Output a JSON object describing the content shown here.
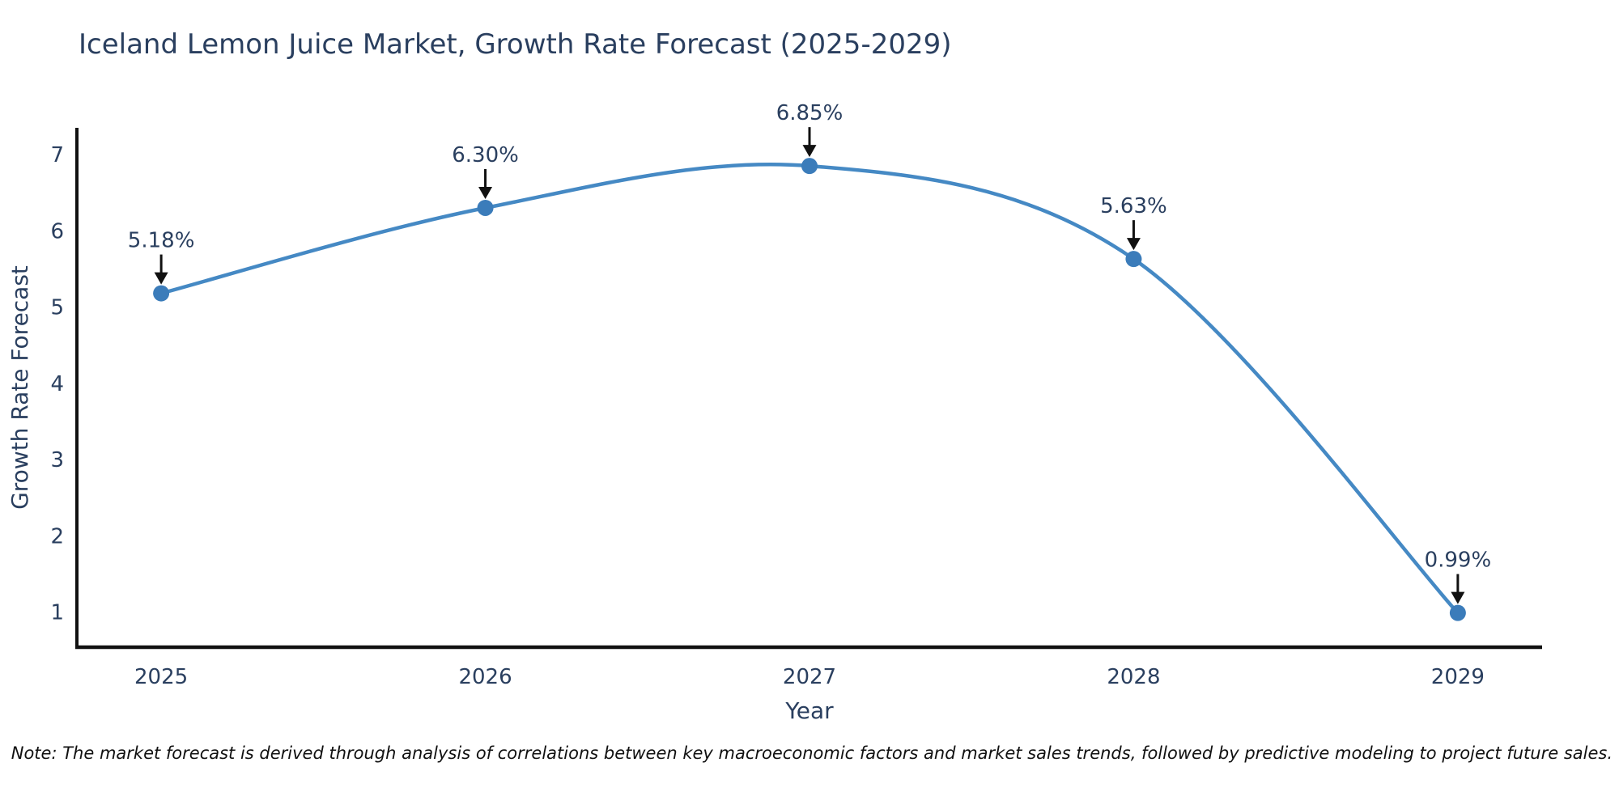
{
  "chart_data": {
    "type": "line",
    "title": "Iceland Lemon Juice Market, Growth Rate Forecast (2025-2029)",
    "xlabel": "Year",
    "ylabel": "Growth Rate Forecast",
    "x": [
      2025,
      2026,
      2027,
      2028,
      2029
    ],
    "y": [
      5.18,
      6.3,
      6.85,
      5.63,
      0.99
    ],
    "point_labels": [
      "5.18%",
      "6.30%",
      "6.85%",
      "5.63%",
      "0.99%"
    ],
    "xticks": [
      2025,
      2026,
      2027,
      2028,
      2029
    ],
    "yticks": [
      1,
      2,
      3,
      4,
      5,
      6,
      7
    ],
    "xlim": [
      2024.74,
      2029.26
    ],
    "ylim": [
      0.54,
      7.35
    ],
    "grid": false,
    "legend": false,
    "line_shape": "spline",
    "colors": {
      "line": "#4589c4",
      "marker": "#3b7cba",
      "text": "#2a3f5f",
      "axis": "#111111",
      "arrow": "#111111"
    },
    "note": "Note: The market forecast is derived through analysis of correlations between key macroeconomic factors and market sales trends, followed by predictive modeling to project future sales."
  }
}
